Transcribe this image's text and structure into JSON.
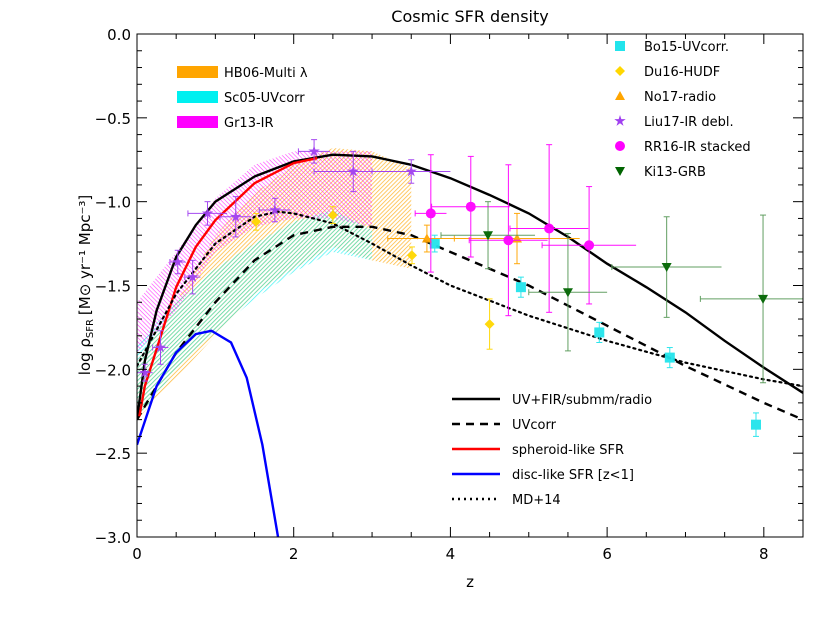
{
  "chart_data": {
    "type": "line",
    "title": "Cosmic SFR density",
    "xlabel": "z",
    "ylabel": "log ρ",
    "ylabel_sub": "SFR",
    "ylabel_units": "[M⊙ yr⁻¹ Mpc⁻³]",
    "xlim": [
      0,
      8.5
    ],
    "ylim": [
      -3.0,
      0.0
    ],
    "x_ticks": [
      "0",
      "2",
      "4",
      "6",
      "8"
    ],
    "y_ticks": [
      "0.0",
      "−0.5",
      "−1.0",
      "−1.5",
      "−2.0",
      "−2.5",
      "−3.0"
    ],
    "grid": false,
    "bands": [
      {
        "name": "HB06-Multi λ",
        "color": "#ffa500",
        "upper": [
          [
            0,
            -1.95
          ],
          [
            0.5,
            -1.6
          ],
          [
            1,
            -1.2
          ],
          [
            1.5,
            -0.95
          ],
          [
            2,
            -0.78
          ],
          [
            2.5,
            -0.68
          ],
          [
            3,
            -0.7
          ],
          [
            3.5,
            -0.8
          ]
        ],
        "lower": [
          [
            0,
            -2.3
          ],
          [
            0.5,
            -2.05
          ],
          [
            1,
            -1.8
          ],
          [
            1.5,
            -1.55
          ],
          [
            2,
            -1.4
          ],
          [
            2.5,
            -1.27
          ],
          [
            3,
            -1.35
          ],
          [
            3.5,
            -1.4
          ]
        ]
      },
      {
        "name": "Sc05-UVcorr",
        "color": "#00f0f0",
        "upper": [
          [
            0,
            -1.85
          ],
          [
            0.5,
            -1.6
          ],
          [
            1,
            -1.4
          ],
          [
            1.5,
            -1.25
          ],
          [
            2,
            -1.12
          ],
          [
            2.5,
            -1.05
          ],
          [
            3,
            -1.17
          ]
        ],
        "lower": [
          [
            0,
            -2.3
          ],
          [
            0.5,
            -2.0
          ],
          [
            1,
            -1.78
          ],
          [
            1.5,
            -1.58
          ],
          [
            2,
            -1.42
          ],
          [
            2.5,
            -1.3
          ],
          [
            3,
            -1.35
          ]
        ]
      },
      {
        "name": "Gr13-IR",
        "color": "#ff00ff",
        "upper": [
          [
            0,
            -1.6
          ],
          [
            0.5,
            -1.3
          ],
          [
            1,
            -0.98
          ],
          [
            1.5,
            -0.78
          ],
          [
            2,
            -0.7
          ],
          [
            2.5,
            -0.7
          ],
          [
            3,
            -0.7
          ]
        ],
        "lower": [
          [
            0,
            -1.9
          ],
          [
            0.5,
            -1.65
          ],
          [
            1,
            -1.3
          ],
          [
            1.5,
            -1.15
          ],
          [
            2,
            -1.1
          ],
          [
            2.5,
            -1.1
          ],
          [
            3,
            -1.15
          ]
        ]
      }
    ],
    "series": [
      {
        "name": "UV+FIR/submm/radio",
        "color": "#000000",
        "style": "solid",
        "points": [
          [
            0,
            -2.3
          ],
          [
            0.1,
            -1.95
          ],
          [
            0.25,
            -1.65
          ],
          [
            0.5,
            -1.33
          ],
          [
            0.75,
            -1.14
          ],
          [
            1,
            -1.0
          ],
          [
            1.5,
            -0.85
          ],
          [
            2,
            -0.76
          ],
          [
            2.5,
            -0.72
          ],
          [
            3,
            -0.73
          ],
          [
            3.5,
            -0.78
          ],
          [
            4,
            -0.86
          ],
          [
            4.5,
            -0.96
          ],
          [
            5,
            -1.07
          ],
          [
            5.5,
            -1.21
          ],
          [
            6,
            -1.37
          ],
          [
            6.5,
            -1.51
          ],
          [
            7,
            -1.66
          ],
          [
            7.5,
            -1.83
          ],
          [
            8,
            -1.99
          ],
          [
            8.5,
            -2.14
          ]
        ]
      },
      {
        "name": "UVcorr",
        "color": "#000000",
        "style": "dashed",
        "points": [
          [
            0,
            -2.3
          ],
          [
            0.25,
            -2.1
          ],
          [
            0.5,
            -1.9
          ],
          [
            1,
            -1.6
          ],
          [
            1.5,
            -1.35
          ],
          [
            2,
            -1.2
          ],
          [
            2.5,
            -1.15
          ],
          [
            3,
            -1.15
          ],
          [
            3.5,
            -1.2
          ],
          [
            4,
            -1.3
          ],
          [
            5,
            -1.5
          ],
          [
            6,
            -1.74
          ],
          [
            7,
            -1.98
          ],
          [
            8,
            -2.2
          ],
          [
            8.5,
            -2.3
          ]
        ]
      },
      {
        "name": "spheroid-like SFR",
        "color": "#ff0000",
        "style": "solid",
        "points": [
          [
            0.03,
            -2.28
          ],
          [
            0.1,
            -2.1
          ],
          [
            0.25,
            -1.88
          ],
          [
            0.5,
            -1.51
          ],
          [
            0.75,
            -1.27
          ],
          [
            1,
            -1.11
          ],
          [
            1.5,
            -0.89
          ],
          [
            2,
            -0.77
          ],
          [
            2.3,
            -0.74
          ]
        ]
      },
      {
        "name": "disc-like SFR [z<1]",
        "color": "#0000ff",
        "style": "solid",
        "points": [
          [
            0,
            -2.45
          ],
          [
            0.25,
            -2.1
          ],
          [
            0.5,
            -1.9
          ],
          [
            0.75,
            -1.79
          ],
          [
            0.95,
            -1.77
          ],
          [
            1.2,
            -1.84
          ],
          [
            1.4,
            -2.05
          ],
          [
            1.6,
            -2.45
          ],
          [
            1.8,
            -3.0
          ]
        ]
      },
      {
        "name": "MD+14",
        "color": "#000000",
        "style": "dotted",
        "points": [
          [
            0,
            -1.98
          ],
          [
            0.5,
            -1.55
          ],
          [
            1,
            -1.25
          ],
          [
            1.5,
            -1.09
          ],
          [
            1.8,
            -1.06
          ],
          [
            2,
            -1.07
          ],
          [
            2.5,
            -1.13
          ],
          [
            3,
            -1.25
          ],
          [
            3.5,
            -1.38
          ],
          [
            4,
            -1.5
          ],
          [
            5,
            -1.68
          ],
          [
            6,
            -1.83
          ],
          [
            7,
            -1.96
          ],
          [
            8,
            -2.06
          ],
          [
            8.5,
            -2.1
          ]
        ]
      }
    ],
    "datasets": [
      {
        "name": "Bo15-UVcorr.",
        "marker": "square",
        "color": "#22e4ec",
        "points": [
          [
            3.8,
            -1.25,
            0.05,
            0
          ],
          [
            4.9,
            -1.51,
            0.06,
            0
          ],
          [
            5.9,
            -1.78,
            0.06,
            0
          ],
          [
            6.8,
            -1.93,
            0.06,
            0
          ],
          [
            7.9,
            -2.33,
            0.07,
            0
          ]
        ]
      },
      {
        "name": "Du16-HUDF",
        "marker": "diamond",
        "color": "#ffd700",
        "points": [
          [
            1.52,
            -1.12,
            0.05,
            0
          ],
          [
            2.5,
            -1.08,
            0.05,
            0
          ],
          [
            3.51,
            -1.32,
            0.05,
            0
          ],
          [
            4.5,
            -1.73,
            0.15,
            0
          ]
        ]
      },
      {
        "name": "No17-radio",
        "marker": "triangle",
        "color": "#ffa500",
        "points": [
          [
            3.7,
            -1.22,
            0.08,
            0.5
          ],
          [
            4.85,
            -1.22,
            0.15,
            0.8
          ]
        ]
      },
      {
        "name": "Liu17-IR debl.",
        "marker": "star",
        "color": "#a040f0",
        "points": [
          [
            0.1,
            -2.02,
            0.05,
            0.1
          ],
          [
            0.3,
            -1.87,
            0.1,
            0.1
          ],
          [
            0.52,
            -1.36,
            0.07,
            0.1
          ],
          [
            0.71,
            -1.45,
            0.1,
            0.1
          ],
          [
            0.9,
            -1.07,
            0.07,
            0.25
          ],
          [
            1.26,
            -1.09,
            0.12,
            0.2
          ],
          [
            1.76,
            -1.05,
            0.07,
            0.2
          ],
          [
            2.26,
            -0.7,
            0.07,
            0.2
          ],
          [
            2.76,
            -0.82,
            0.12,
            0.5
          ],
          [
            3.5,
            -0.82,
            0.07,
            0.5
          ]
        ]
      },
      {
        "name": "RR16-IR stacked",
        "marker": "circle",
        "color": "#ff00ff",
        "points": [
          [
            3.75,
            -1.07,
            0.35,
            0.2
          ],
          [
            4.26,
            -1.03,
            0.3,
            0.5
          ],
          [
            4.74,
            -1.23,
            0.45,
            0.5
          ],
          [
            5.26,
            -1.16,
            0.5,
            0.5
          ],
          [
            5.77,
            -1.26,
            0.35,
            0.6
          ]
        ]
      },
      {
        "name": "Ki13-GRB",
        "marker": "triangle-down",
        "color": "#006400",
        "points": [
          [
            4.48,
            -1.2,
            0.2,
            0.6
          ],
          [
            5.5,
            -1.54,
            0.35,
            0.5
          ],
          [
            6.76,
            -1.39,
            0.3,
            0.7
          ],
          [
            7.99,
            -1.58,
            0.5,
            0.8
          ]
        ]
      }
    ]
  }
}
